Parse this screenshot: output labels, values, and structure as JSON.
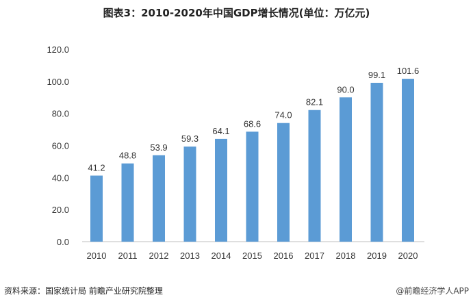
{
  "chart_data": {
    "type": "bar",
    "title": "图表3：2010-2020年中国GDP增长情况(单位：万亿元)",
    "categories": [
      "2010",
      "2011",
      "2012",
      "2013",
      "2014",
      "2015",
      "2016",
      "2017",
      "2018",
      "2019",
      "2020"
    ],
    "values": [
      41.2,
      48.8,
      53.9,
      59.3,
      64.1,
      68.6,
      74.0,
      82.1,
      90.0,
      99.1,
      101.6
    ],
    "data_labels": [
      "41.2",
      "48.8",
      "53.9",
      "59.3",
      "64.1",
      "68.6",
      "74.0",
      "82.1",
      "90.0",
      "99.1",
      "101.6"
    ],
    "ylim": [
      0,
      120
    ],
    "yticks": [
      "0.0",
      "20.0",
      "40.0",
      "60.0",
      "80.0",
      "100.0",
      "120.0"
    ],
    "grid": false,
    "bar_color": "#5b9bd5",
    "xlabel": "",
    "ylabel": ""
  },
  "footer": {
    "source": "资料来源：国家统计局 前瞻产业研究院整理",
    "brand": "@前瞻经济学人APP"
  }
}
